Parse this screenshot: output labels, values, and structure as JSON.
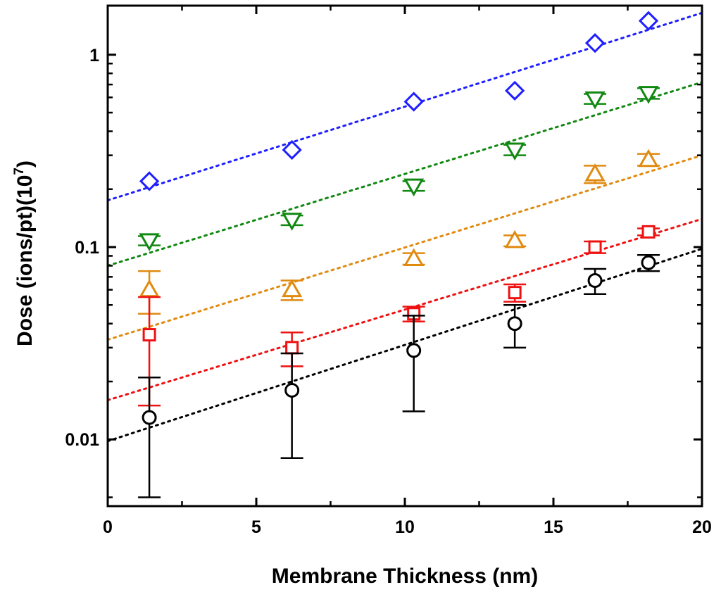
{
  "chart_data": {
    "type": "scatter",
    "title": "",
    "xlabel": "Membrane Thickness (nm)",
    "ylabel_main": "Dose (ions/pt)(10",
    "ylabel_sup": "7",
    "ylabel_close": ")",
    "xlim": [
      0,
      20
    ],
    "ylim": [
      0.0045,
      1.8
    ],
    "yscale": "log",
    "grid": false,
    "legend": "none",
    "x_ticks": [
      0,
      5,
      10,
      15,
      20
    ],
    "x_tick_labels": [
      "0",
      "5",
      "10",
      "15",
      "20"
    ],
    "x_minor_ticks": [
      2.5,
      7.5,
      12.5,
      17.5
    ],
    "y_ticks": [
      0.01,
      0.1,
      1
    ],
    "y_tick_labels": [
      "0.01",
      "0.1",
      "1"
    ],
    "y_minor_ticks": [
      0.005,
      0.02,
      0.03,
      0.04,
      0.05,
      0.06,
      0.07,
      0.08,
      0.09,
      0.2,
      0.3,
      0.4,
      0.5,
      0.6,
      0.7,
      0.8,
      0.9
    ],
    "series": [
      {
        "marker": "diamond",
        "color": "#1f1fff",
        "x": [
          1.4,
          6.2,
          10.3,
          13.7,
          16.4,
          18.2
        ],
        "y": [
          0.22,
          0.32,
          0.57,
          0.65,
          1.15,
          1.5
        ],
        "err": [
          0,
          0,
          0,
          0,
          0,
          0
        ],
        "fit": {
          "x": [
            0,
            20
          ],
          "y": [
            0.175,
            1.65
          ]
        }
      },
      {
        "marker": "triangle-down",
        "color": "#118811",
        "x": [
          1.4,
          6.2,
          10.3,
          13.7,
          16.4,
          18.2
        ],
        "y": [
          0.108,
          0.138,
          0.208,
          0.32,
          0.59,
          0.63
        ],
        "err": [
          0.006,
          0.008,
          0.012,
          0.02,
          0.035,
          0.04
        ],
        "fit": {
          "x": [
            0,
            20
          ],
          "y": [
            0.08,
            0.72
          ]
        }
      },
      {
        "marker": "triangle-up",
        "color": "#e08a10",
        "x": [
          1.4,
          6.2,
          10.3,
          13.7,
          16.4,
          18.2
        ],
        "y": [
          0.06,
          0.06,
          0.087,
          0.108,
          0.24,
          0.285
        ],
        "err": [
          0.015,
          0.007,
          0.006,
          0.007,
          0.025,
          0.02
        ],
        "fit": {
          "x": [
            0,
            20
          ],
          "y": [
            0.033,
            0.3
          ]
        }
      },
      {
        "marker": "square",
        "color": "#ee1111",
        "x": [
          1.4,
          6.2,
          10.3,
          13.7,
          16.4,
          18.2
        ],
        "y": [
          0.035,
          0.03,
          0.045,
          0.058,
          0.1,
          0.12
        ],
        "err": [
          0.02,
          0.006,
          0.004,
          0.006,
          0.007,
          0.005
        ],
        "fit": {
          "x": [
            0,
            20
          ],
          "y": [
            0.016,
            0.14
          ]
        }
      },
      {
        "marker": "circle",
        "color": "#000000",
        "x": [
          1.4,
          6.2,
          10.3,
          13.7,
          16.4,
          18.2
        ],
        "y": [
          0.013,
          0.018,
          0.029,
          0.04,
          0.067,
          0.083
        ],
        "err": [
          0.008,
          0.01,
          0.015,
          0.01,
          0.01,
          0.008
        ],
        "fit": {
          "x": [
            0,
            20
          ],
          "y": [
            0.0098,
            0.098
          ]
        }
      }
    ]
  }
}
